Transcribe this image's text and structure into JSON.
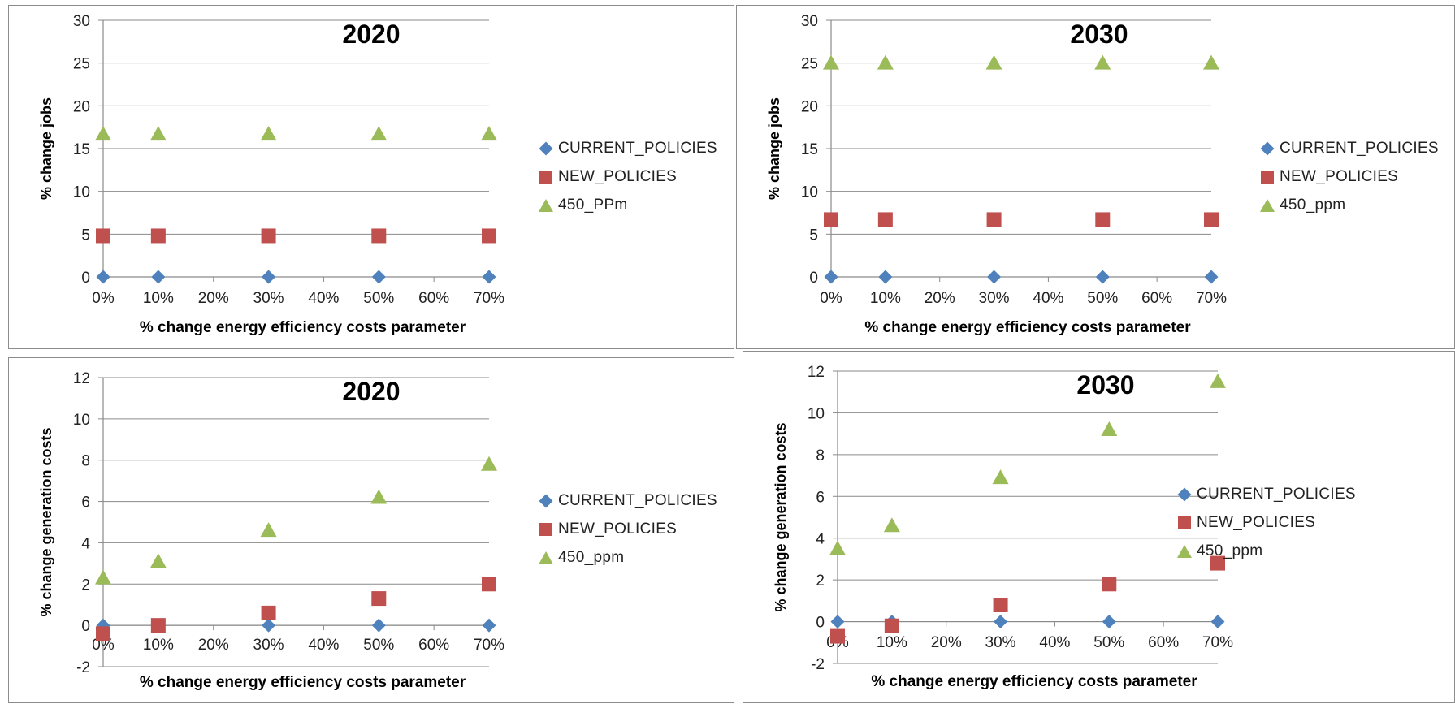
{
  "chart_data": [
    {
      "type": "scatter",
      "title": "2020",
      "xlabel": "% change energy efficiency costs parameter",
      "ylabel": "% change jobs",
      "x_ticks": [
        "0%",
        "10%",
        "20%",
        "30%",
        "40%",
        "50%",
        "60%",
        "70%"
      ],
      "y_ticks": [
        "0",
        "5",
        "10",
        "15",
        "20",
        "25",
        "30"
      ],
      "xlim": [
        0,
        70
      ],
      "ylim": [
        0,
        30
      ],
      "grid": true,
      "legend_position": "right",
      "x": [
        0,
        10,
        30,
        50,
        70
      ],
      "series": [
        {
          "name": "CURRENT_POLICIES",
          "marker": "diamond",
          "color": "#4f81bd",
          "values": [
            0,
            0,
            0,
            0,
            0
          ]
        },
        {
          "name": "NEW_POLICIES",
          "marker": "square",
          "color": "#c0504d",
          "values": [
            4.8,
            4.8,
            4.8,
            4.8,
            4.8
          ]
        },
        {
          "name": "450_PPm",
          "marker": "triangle",
          "color": "#9bbb59",
          "values": [
            16.7,
            16.7,
            16.7,
            16.7,
            16.7
          ]
        }
      ]
    },
    {
      "type": "scatter",
      "title": "2030",
      "xlabel": "% change energy efficiency costs parameter",
      "ylabel": "% change jobs",
      "x_ticks": [
        "0%",
        "10%",
        "20%",
        "30%",
        "40%",
        "50%",
        "60%",
        "70%"
      ],
      "y_ticks": [
        "0",
        "5",
        "10",
        "15",
        "20",
        "25",
        "30"
      ],
      "xlim": [
        0,
        70
      ],
      "ylim": [
        0,
        30
      ],
      "grid": true,
      "legend_position": "right",
      "x": [
        0,
        10,
        30,
        50,
        70
      ],
      "series": [
        {
          "name": "CURRENT_POLICIES",
          "marker": "diamond",
          "color": "#4f81bd",
          "values": [
            0,
            0,
            0,
            0,
            0
          ]
        },
        {
          "name": "NEW_POLICIES",
          "marker": "square",
          "color": "#c0504d",
          "values": [
            6.7,
            6.7,
            6.7,
            6.7,
            6.7
          ]
        },
        {
          "name": "450_ppm",
          "marker": "triangle",
          "color": "#9bbb59",
          "values": [
            25,
            25,
            25,
            25,
            25
          ]
        }
      ]
    },
    {
      "type": "scatter",
      "title": "2020",
      "xlabel": "% change energy efficiency costs parameter",
      "ylabel": "% change generation costs",
      "x_ticks": [
        "0%",
        "10%",
        "20%",
        "30%",
        "40%",
        "50%",
        "60%",
        "70%"
      ],
      "y_ticks": [
        "-2",
        "0",
        "2",
        "4",
        "6",
        "8",
        "10",
        "12"
      ],
      "xlim": [
        0,
        70
      ],
      "ylim": [
        -2,
        12
      ],
      "grid": true,
      "legend_position": "right",
      "x": [
        0,
        10,
        30,
        50,
        70
      ],
      "series": [
        {
          "name": "CURRENT_POLICIES",
          "marker": "diamond",
          "color": "#4f81bd",
          "values": [
            0,
            0,
            0,
            0,
            0
          ]
        },
        {
          "name": "NEW_POLICIES",
          "marker": "square",
          "color": "#c0504d",
          "values": [
            -0.4,
            0,
            0.6,
            1.3,
            2.0
          ]
        },
        {
          "name": "450_ppm",
          "marker": "triangle",
          "color": "#9bbb59",
          "values": [
            2.3,
            3.1,
            4.6,
            6.2,
            7.8
          ]
        }
      ]
    },
    {
      "type": "scatter",
      "title": "2030",
      "xlabel": "% change energy efficiency costs parameter",
      "ylabel": "% change generation costs",
      "x_ticks": [
        "0%",
        "10%",
        "20%",
        "30%",
        "40%",
        "50%",
        "60%",
        "70%"
      ],
      "y_ticks": [
        "-2",
        "0",
        "2",
        "4",
        "6",
        "8",
        "10",
        "12"
      ],
      "xlim": [
        0,
        70
      ],
      "ylim": [
        -2,
        12
      ],
      "grid": true,
      "legend_position": "right",
      "x": [
        0,
        10,
        30,
        50,
        70
      ],
      "series": [
        {
          "name": "CURRENT_POLICIES",
          "marker": "diamond",
          "color": "#4f81bd",
          "values": [
            0,
            0,
            0,
            0,
            0
          ]
        },
        {
          "name": "NEW_POLICIES",
          "marker": "square",
          "color": "#c0504d",
          "values": [
            -0.7,
            -0.2,
            0.8,
            1.8,
            2.8
          ]
        },
        {
          "name": "450_ppm",
          "marker": "triangle",
          "color": "#9bbb59",
          "values": [
            3.5,
            4.6,
            6.9,
            9.2,
            11.5
          ]
        }
      ]
    }
  ]
}
